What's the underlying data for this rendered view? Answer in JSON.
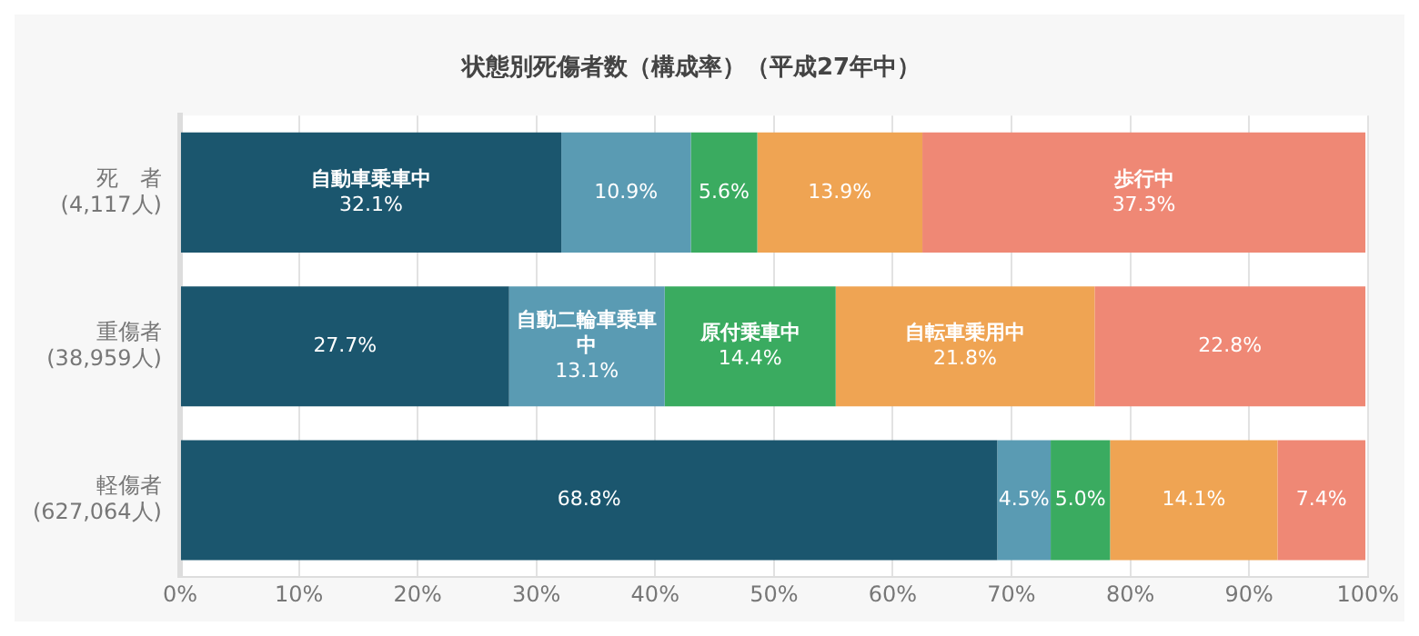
{
  "chart_data": {
    "type": "bar",
    "orientation": "horizontal",
    "stacked": true,
    "title": "状態別死傷者数（構成率）（平成27年中）",
    "categories": [
      "死　者\n(4,117人)",
      "重傷者\n(38,959人)",
      "軽傷者\n(627,064人)"
    ],
    "series": [
      {
        "color": "#1b566e",
        "values": [
          32.1,
          27.7,
          68.8
        ],
        "value_labels": [
          "自動車乗車中\n32.1%",
          "27.7%",
          "68.8%"
        ]
      },
      {
        "color": "#5a9bb3",
        "values": [
          10.9,
          13.1,
          4.5
        ],
        "value_labels": [
          "10.9%",
          "自動二輪車乗車中\n13.1%",
          "4.5%"
        ]
      },
      {
        "color": "#3aab60",
        "values": [
          5.6,
          14.4,
          5.0
        ],
        "value_labels": [
          "5.6%",
          "原付乗車中\n14.4%",
          "5.0%"
        ]
      },
      {
        "color": "#efa453",
        "values": [
          13.9,
          21.8,
          14.1
        ],
        "value_labels": [
          "13.9%",
          "自転車乗用中\n21.8%",
          "14.1%"
        ]
      },
      {
        "color": "#ef8875",
        "values": [
          37.3,
          22.8,
          7.4
        ],
        "value_labels": [
          "歩行中\n37.3%",
          "22.8%",
          "7.4%"
        ]
      }
    ],
    "xlim": [
      0,
      100
    ],
    "xticks": [
      {
        "value": 0,
        "label": "0%"
      },
      {
        "value": 10,
        "label": "10%"
      },
      {
        "value": 20,
        "label": "20%"
      },
      {
        "value": 30,
        "label": "30%"
      },
      {
        "value": 40,
        "label": "40%"
      },
      {
        "value": 50,
        "label": "50%"
      },
      {
        "value": 60,
        "label": "60%"
      },
      {
        "value": 70,
        "label": "70%"
      },
      {
        "value": 80,
        "label": "80%"
      },
      {
        "value": 90,
        "label": "90%"
      },
      {
        "value": 100,
        "label": "100%"
      }
    ],
    "grid": "x",
    "legend": false
  }
}
